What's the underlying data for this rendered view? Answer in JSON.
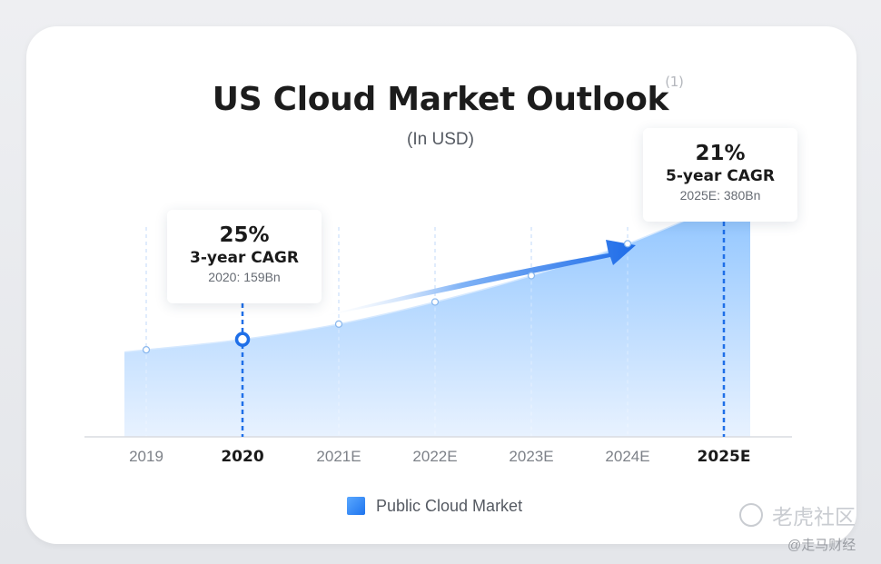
{
  "chart_data": {
    "type": "area",
    "title": "US Cloud Market Outlook",
    "title_note": "(1)",
    "subtitle": "(In USD)",
    "categories": [
      "2019",
      "2020",
      "2021E",
      "2022E",
      "2023E",
      "2024E",
      "2025E"
    ],
    "highlighted_categories": [
      "2020",
      "2025E"
    ],
    "series": [
      {
        "name": "Public Cloud Market",
        "values": [
          142,
          159,
          184,
          220,
          263,
          315,
          380
        ]
      }
    ],
    "ylim": [
      0,
      520
    ],
    "grid": "dashed vertical lines per category",
    "legend_position": "bottom-center",
    "colors": {
      "area_top": "#8cc3ff",
      "area_bottom": "#e8f2ff",
      "accent": "#1f6fe8",
      "grid": "#cfe2fb"
    },
    "annotations": [
      {
        "category": "2020",
        "pct": "25%",
        "label": "3-year CAGR",
        "value": "2020: 159Bn"
      },
      {
        "category": "2025E",
        "pct": "21%",
        "label": "5-year CAGR",
        "value": "2025E: 380Bn"
      }
    ],
    "trend_arrow": "up-right"
  },
  "watermark": {
    "brand": "老虎社区",
    "handle": "@走马财经",
    "icon": "tiger-community-logo-icon"
  }
}
